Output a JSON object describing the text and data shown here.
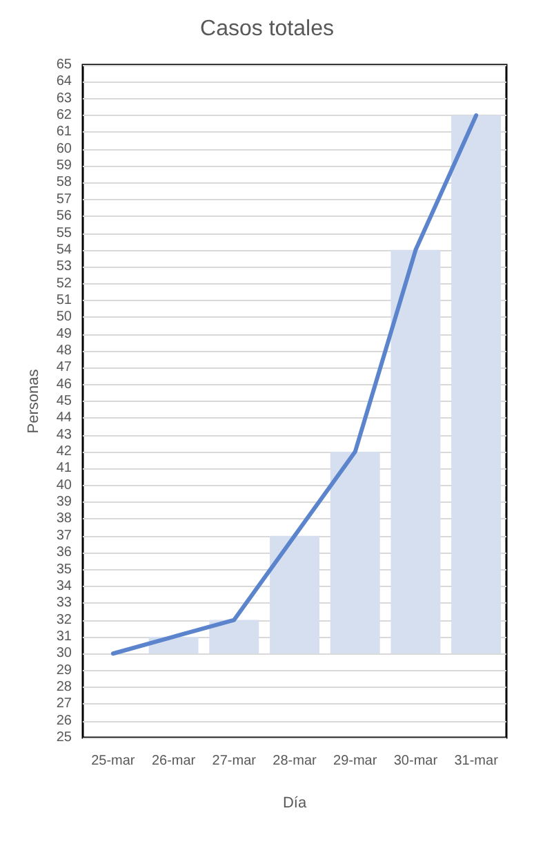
{
  "chart_data": {
    "type": "bar",
    "title": "Casos totales",
    "xlabel": "Día",
    "ylabel": "Personas",
    "categories": [
      "25-mar",
      "26-mar",
      "27-mar",
      "28-mar",
      "29-mar",
      "30-mar",
      "31-mar"
    ],
    "series": [
      {
        "color": "#d5dff0",
        "base": [
          null,
          30,
          30,
          30,
          30,
          30,
          30
        ],
        "values": [
          null,
          1,
          2,
          7,
          12,
          24,
          32
        ]
      },
      {
        "type": "line",
        "color": "#5b84cc",
        "values": [
          30,
          31,
          32,
          37,
          42,
          54,
          62
        ],
        "marker": "none",
        "line_style": "solid"
      }
    ],
    "ylim": [
      25,
      65
    ],
    "yticks": [
      25,
      26,
      27,
      28,
      29,
      30,
      31,
      32,
      33,
      34,
      35,
      36,
      37,
      38,
      39,
      40,
      41,
      42,
      43,
      44,
      45,
      46,
      47,
      48,
      49,
      50,
      51,
      52,
      53,
      54,
      55,
      56,
      57,
      58,
      59,
      60,
      61,
      62,
      63,
      64,
      65
    ],
    "grid": "y"
  }
}
